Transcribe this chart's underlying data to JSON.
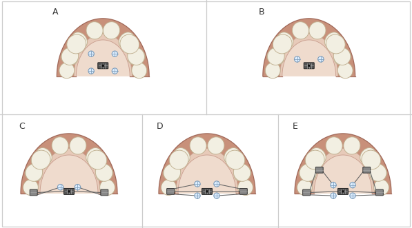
{
  "fig_width": 5.97,
  "fig_height": 3.31,
  "background_color": "#ffffff",
  "border_color": "#cccccc",
  "panel_labels": [
    "A",
    "B",
    "C",
    "D",
    "E"
  ],
  "label_fontsize": 9,
  "gum_color": "#c8907a",
  "palate_light": "#edd5c5",
  "tooth_color": "#f2efe2",
  "screw_body_color": "#555555",
  "screw_detail_color": "#333333",
  "wire_color": "#606060",
  "miniscrew_color": "#7a9ab8",
  "band_fill": "#888888"
}
